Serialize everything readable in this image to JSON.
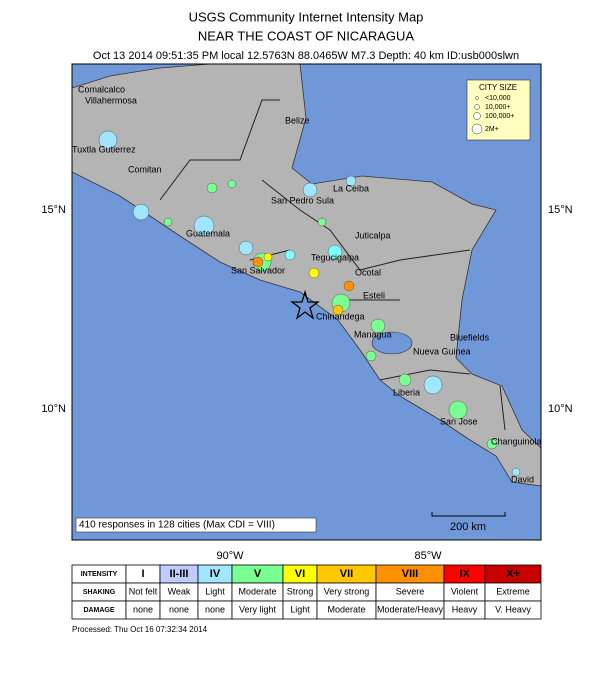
{
  "header": {
    "title": "USGS Community Internet Intensity Map",
    "subtitle": "NEAR THE COAST OF NICARAGUA",
    "info": "Oct 13 2014 09:51:35 PM local 12.5763N 88.0465W M7.3 Depth: 40 km ID:usb000slwn"
  },
  "city_size": {
    "title": "CITY SIZE",
    "items": [
      "<10,000",
      "10,000+",
      "100,000+",
      "2M+"
    ]
  },
  "map": {
    "cities": [
      "Comalcalco",
      "Villahermosa",
      "Tuxtla Gutierrez",
      "Comitan",
      "Belize",
      "La Ceiba",
      "San Pedro Sula",
      "Guatemala",
      "Juticalpa",
      "Tegucigalpa",
      "San Salvador",
      "Ocotal",
      "Esteli",
      "Chinandega",
      "Managua",
      "Bluefields",
      "Nueva Guinea",
      "Liberia",
      "San Jose",
      "Changuinola",
      "David"
    ],
    "latitude_labels": [
      "15°N",
      "10°N"
    ],
    "longitude_labels": [
      "90°W",
      "85°W"
    ],
    "responses": "410 responses in 128 cities (Max CDI = VIII)",
    "scale": "200 km"
  },
  "table": {
    "rows": [
      {
        "label": "INTENSITY",
        "cells": [
          "I",
          "II-III",
          "IV",
          "V",
          "VI",
          "VII",
          "VIII",
          "IX",
          "X+"
        ]
      },
      {
        "label": "SHAKING",
        "cells": [
          "Not felt",
          "Weak",
          "Light",
          "Moderate",
          "Strong",
          "Very strong",
          "Severe",
          "Violent",
          "Extreme"
        ]
      },
      {
        "label": "DAMAGE",
        "cells": [
          "none",
          "none",
          "none",
          "Very light",
          "Light",
          "Moderate",
          "Moderate/Heavy",
          "Heavy",
          "V. Heavy"
        ]
      }
    ],
    "colors": [
      "#ffffff",
      "#bfccff",
      "#a0e6ff",
      "#7aff93",
      "#ffff00",
      "#ffc800",
      "#ff9100",
      "#ff0000",
      "#c80000"
    ]
  },
  "footer": "Processed: Thu Oct 16 07:32:34 2014"
}
